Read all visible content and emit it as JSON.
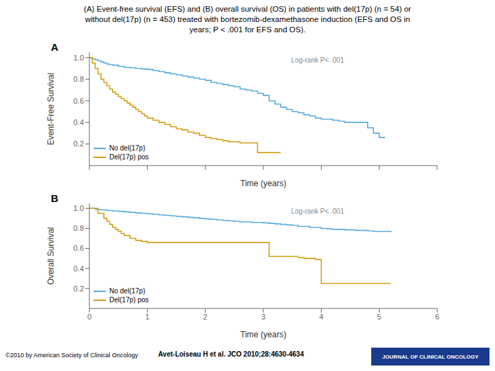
{
  "title": "(A) Event-free survival (EFS) and (B) overall survival (OS) in patients with del(17p) (n = 54) or\nwithout del(17p) (n = 453) treated with bortezomib-dexamethasone induction (EFS and OS in\nyears; P < .001 for EFS and OS).",
  "annotations": [
    "©2010 by American Society of Clinical Oncology",
    "Avet-Loiseau H et al. JCO 2010;28:4630-4634",
    "JOURNAL OF CLINICAL ONCOLOGY"
  ],
  "chart_data": [
    {
      "type": "step",
      "title": "A",
      "xlabel": "Time (years)",
      "ylabel": "Event-Free Survival",
      "annotations": [
        "Log-rank P< .001"
      ],
      "series": [
        {
          "name": "No del(17p)",
          "color": "#5aacdf",
          "x": [
            0,
            0.05,
            0.1,
            0.15,
            0.2,
            0.25,
            0.3,
            0.35,
            0.4,
            0.5,
            0.6,
            0.7,
            0.8,
            0.9,
            1.0,
            1.1,
            1.2,
            1.3,
            1.4,
            1.5,
            1.6,
            1.7,
            1.8,
            1.9,
            2.0,
            2.1,
            2.2,
            2.3,
            2.4,
            2.5,
            2.6,
            2.7,
            2.8,
            2.9,
            3.0,
            3.1,
            3.2,
            3.3,
            3.4,
            3.5,
            3.6,
            3.7,
            3.8,
            3.9,
            4.0,
            4.1,
            4.2,
            4.3,
            4.4,
            4.5,
            4.8,
            4.9,
            5.0,
            5.1
          ],
          "values": [
            1.0,
            0.99,
            0.98,
            0.97,
            0.96,
            0.95,
            0.94,
            0.935,
            0.93,
            0.92,
            0.91,
            0.905,
            0.9,
            0.895,
            0.89,
            0.88,
            0.87,
            0.86,
            0.85,
            0.84,
            0.83,
            0.82,
            0.81,
            0.8,
            0.79,
            0.77,
            0.76,
            0.75,
            0.74,
            0.73,
            0.71,
            0.7,
            0.69,
            0.67,
            0.65,
            0.6,
            0.57,
            0.54,
            0.52,
            0.5,
            0.49,
            0.47,
            0.46,
            0.44,
            0.43,
            0.43,
            0.42,
            0.41,
            0.4,
            0.4,
            0.35,
            0.3,
            0.26,
            0.26
          ]
        },
        {
          "name": "Del(17p) pos",
          "color": "#d4a017",
          "x": [
            0,
            0.05,
            0.1,
            0.15,
            0.2,
            0.25,
            0.3,
            0.35,
            0.4,
            0.45,
            0.5,
            0.55,
            0.6,
            0.65,
            0.7,
            0.75,
            0.8,
            0.85,
            0.9,
            0.95,
            1.0,
            1.1,
            1.2,
            1.3,
            1.4,
            1.5,
            1.6,
            1.7,
            1.8,
            1.9,
            2.0,
            2.1,
            2.2,
            2.3,
            2.4,
            2.5,
            2.6,
            2.8,
            2.9,
            3.0,
            3.1,
            3.2,
            3.3
          ],
          "values": [
            1.0,
            0.95,
            0.9,
            0.85,
            0.8,
            0.77,
            0.74,
            0.71,
            0.68,
            0.66,
            0.64,
            0.62,
            0.6,
            0.58,
            0.56,
            0.54,
            0.52,
            0.5,
            0.48,
            0.46,
            0.44,
            0.42,
            0.4,
            0.38,
            0.36,
            0.34,
            0.33,
            0.31,
            0.3,
            0.28,
            0.26,
            0.25,
            0.24,
            0.23,
            0.22,
            0.22,
            0.21,
            0.21,
            0.12,
            0.12,
            0.12,
            0.12,
            0.12
          ]
        }
      ],
      "xlim": [
        0,
        6
      ],
      "xticks": [
        0,
        1,
        2,
        3,
        4,
        5,
        6
      ],
      "ylim": [
        0.0,
        1.05
      ],
      "yticks": [
        0.2,
        0.4,
        0.6,
        0.8,
        {
          "value": 1.0,
          "label": "1.0"
        }
      ],
      "legend": "lower left",
      "grid": false,
      "tick_labels": "y"
    },
    {
      "type": "step",
      "title": "B",
      "xlabel": "Time (years)",
      "ylabel": "Overall Survival",
      "annotations": [
        "Log-rank P< .001"
      ],
      "series": [
        {
          "name": "No del(17p)",
          "color": "#5aacdf",
          "x": [
            0,
            0.1,
            0.2,
            0.3,
            0.4,
            0.5,
            0.6,
            0.7,
            0.8,
            0.9,
            1.0,
            1.1,
            1.2,
            1.3,
            1.4,
            1.5,
            1.6,
            1.7,
            1.8,
            1.9,
            2.0,
            2.1,
            2.2,
            2.3,
            2.4,
            2.5,
            2.6,
            2.8,
            3.0,
            3.1,
            3.2,
            3.3,
            3.4,
            3.5,
            3.6,
            3.8,
            4.0,
            4.1,
            4.2,
            4.4,
            4.6,
            4.8,
            4.9,
            5.0,
            5.1,
            5.2
          ],
          "values": [
            1.0,
            0.99,
            0.985,
            0.98,
            0.975,
            0.97,
            0.965,
            0.96,
            0.955,
            0.95,
            0.945,
            0.94,
            0.935,
            0.93,
            0.925,
            0.92,
            0.915,
            0.91,
            0.905,
            0.9,
            0.895,
            0.89,
            0.885,
            0.88,
            0.875,
            0.87,
            0.865,
            0.86,
            0.855,
            0.85,
            0.845,
            0.84,
            0.835,
            0.83,
            0.82,
            0.81,
            0.8,
            0.795,
            0.79,
            0.785,
            0.78,
            0.775,
            0.77,
            0.77,
            0.77,
            0.76
          ]
        },
        {
          "name": "Del(17p) pos",
          "color": "#d4a017",
          "x": [
            0,
            0.15,
            0.25,
            0.3,
            0.35,
            0.4,
            0.45,
            0.5,
            0.55,
            0.6,
            0.7,
            0.8,
            0.9,
            1.0,
            1.3,
            1.5,
            1.8,
            2.0,
            2.5,
            3.0,
            3.1,
            3.2,
            3.5,
            3.6,
            3.7,
            3.9,
            4.0,
            4.1,
            4.5,
            4.8,
            5.0,
            5.2
          ],
          "values": [
            1.0,
            0.95,
            0.9,
            0.87,
            0.84,
            0.81,
            0.79,
            0.77,
            0.75,
            0.73,
            0.7,
            0.68,
            0.67,
            0.66,
            0.66,
            0.66,
            0.66,
            0.66,
            0.66,
            0.66,
            0.52,
            0.52,
            0.52,
            0.51,
            0.5,
            0.49,
            0.25,
            0.25,
            0.25,
            0.25,
            0.25,
            0.25
          ]
        }
      ],
      "xlim": [
        0,
        6
      ],
      "xticks": [
        0,
        1,
        2,
        3,
        4,
        5,
        6
      ],
      "ylim": [
        0.0,
        1.05
      ],
      "yticks": [
        0.2,
        0.4,
        0.6,
        0.8,
        {
          "value": 1.0,
          "label": "1.0"
        }
      ],
      "legend": "lower left",
      "grid": false
    }
  ]
}
